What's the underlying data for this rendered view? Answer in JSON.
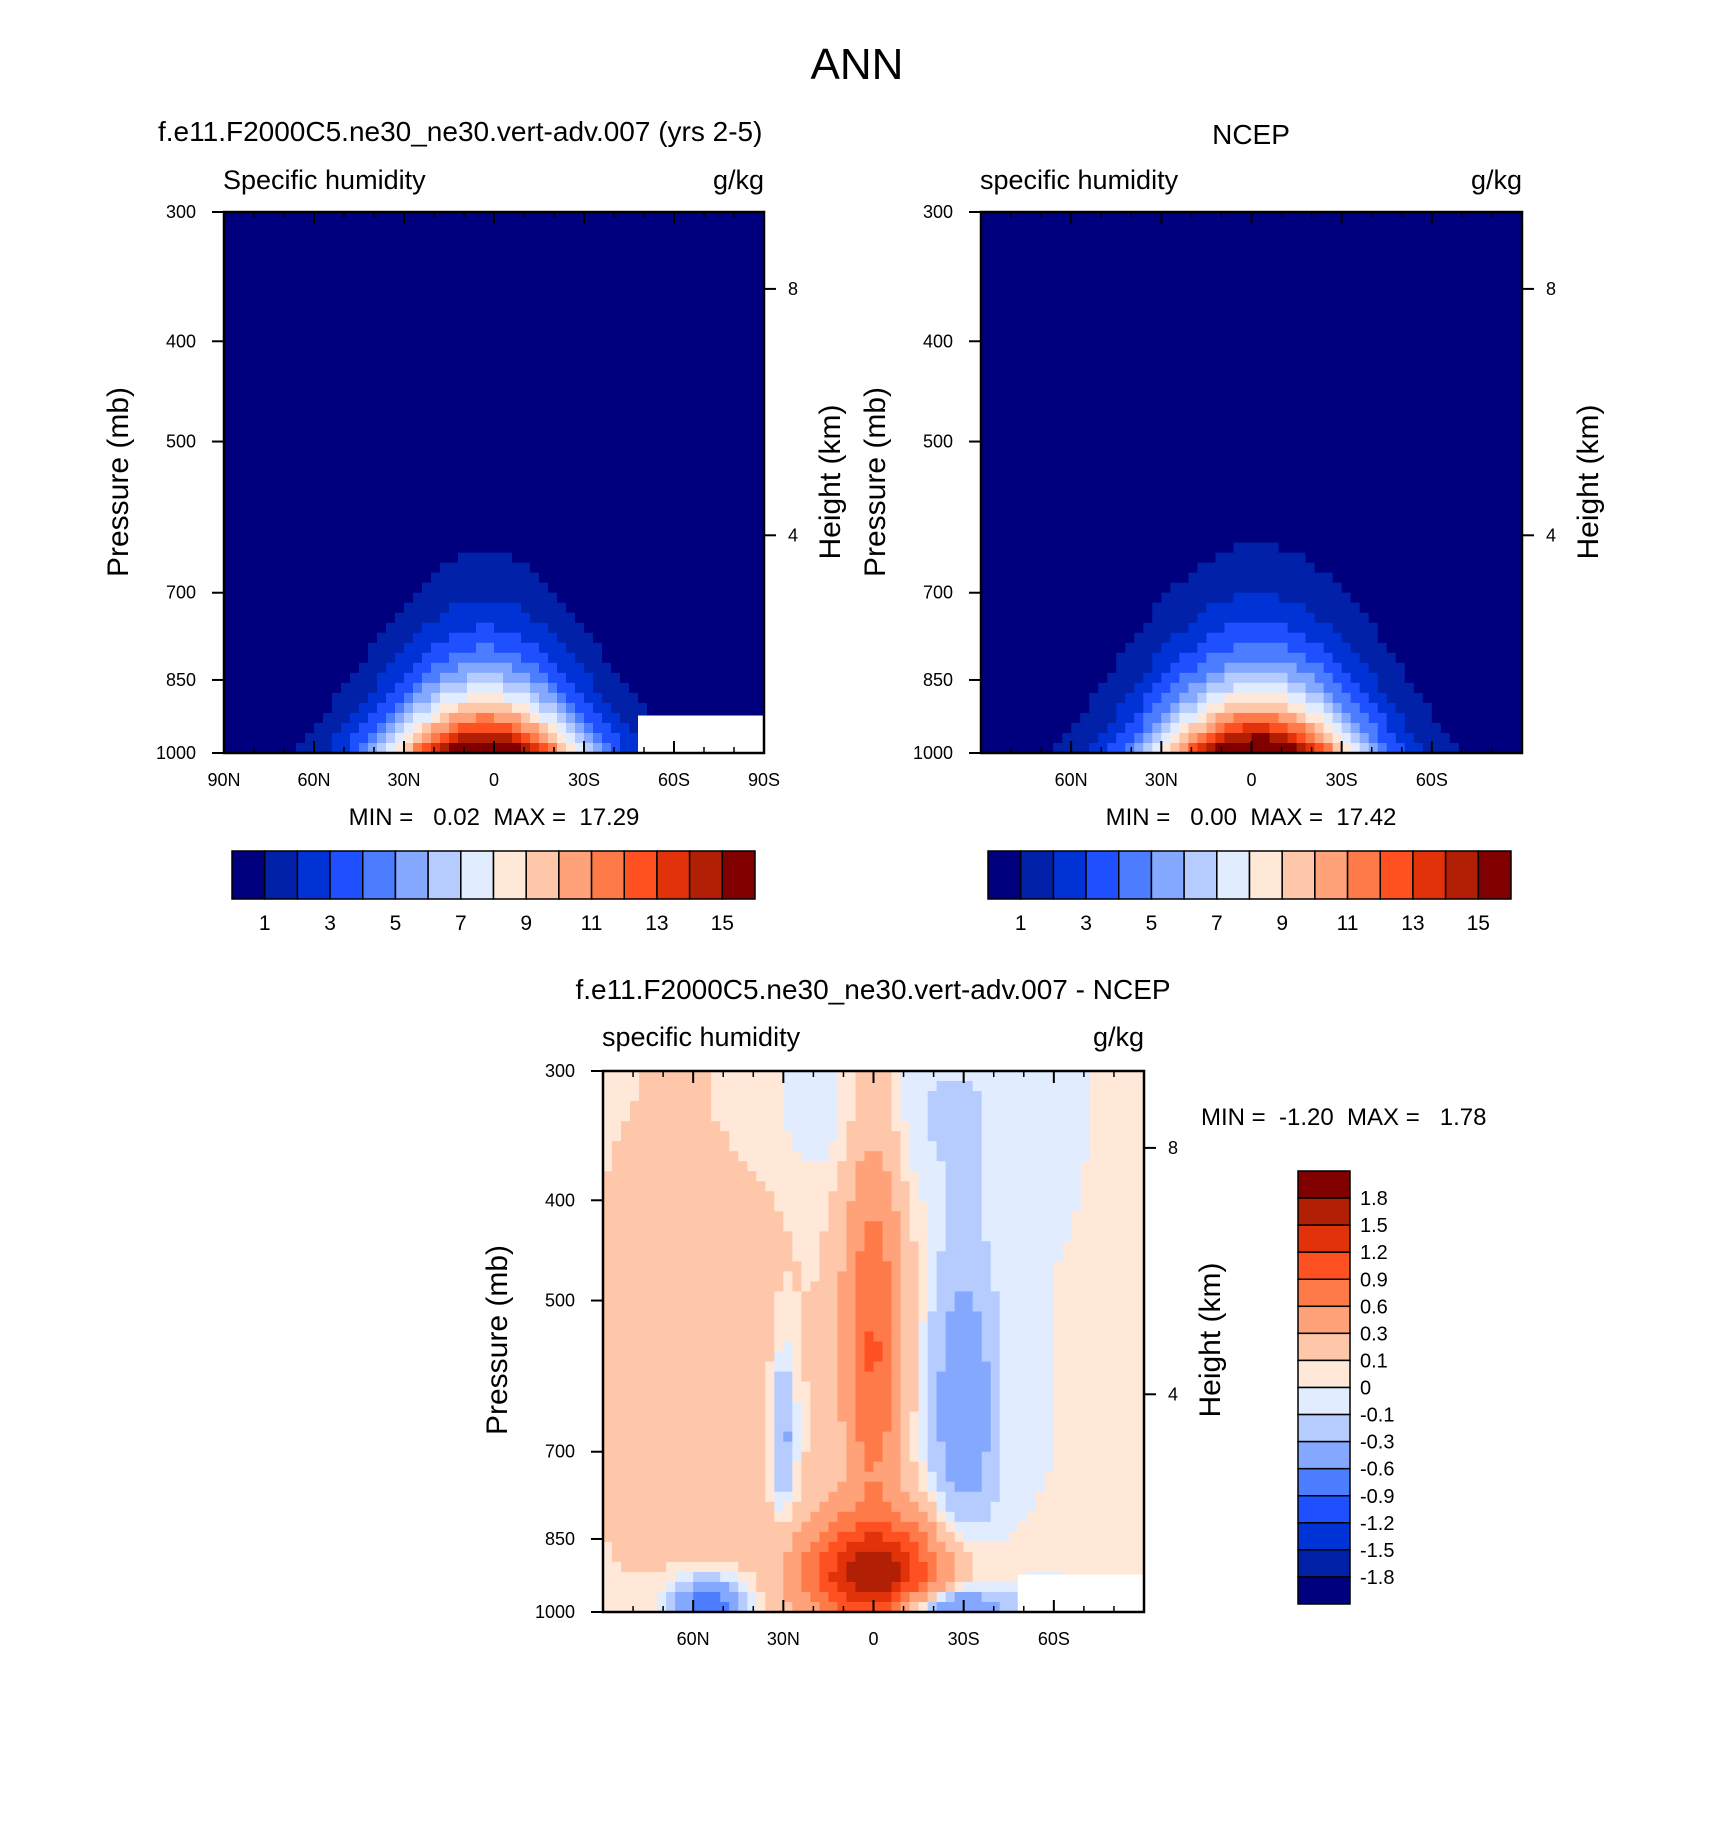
{
  "figure_title": "ANN",
  "chart_data": [
    {
      "type": "contour",
      "title": "f.e11.F2000C5.ne30_ne30.vert-adv.007 (yrs 2-5)",
      "field_label": "Specific humidity",
      "units": "g/kg",
      "xlabel": "",
      "ylabel": "Pressure (mb)",
      "y2label": "Height (km)",
      "x_ticklabels": [
        "90N",
        "60N",
        "30N",
        "0",
        "30S",
        "60S",
        "90S"
      ],
      "y_ticks": [
        300,
        400,
        500,
        700,
        850,
        1000
      ],
      "y2_ticks": [
        8,
        4
      ],
      "y_scale": "log",
      "ylim": [
        1000,
        300
      ],
      "xlim": [
        90,
        -90
      ],
      "stats": "MIN =   0.02  MAX =  17.29",
      "min": 0.02,
      "max": 17.29,
      "levels": [
        0,
        1,
        2,
        3,
        4,
        5,
        6,
        7,
        8,
        9,
        10,
        11,
        12,
        13,
        14,
        15,
        16
      ],
      "colorbar_labels": [
        "1",
        "3",
        "5",
        "7",
        "9",
        "11",
        "13",
        "15"
      ],
      "colors": [
        "#00007f",
        "#0021a8",
        "#0033d6",
        "#1f50ff",
        "#4d7dff",
        "#85a8ff",
        "#b6ccff",
        "#e1ecff",
        "#ffe8d8",
        "#ffc7aa",
        "#ffa27a",
        "#ff7a49",
        "#ff5022",
        "#e1320a",
        "#b11f05",
        "#800000"
      ],
      "missing_region": {
        "lat_from": -48,
        "lat_to": -90,
        "p_from": 920,
        "p_to": 1000
      }
    },
    {
      "type": "contour",
      "title": "NCEP",
      "field_label": "specific humidity",
      "units": "g/kg",
      "xlabel": "",
      "ylabel": "Pressure (mb)",
      "y2label": "Height (km)",
      "x_ticklabels": [
        "60N",
        "30N",
        "0",
        "30S",
        "60S"
      ],
      "y_ticks": [
        300,
        400,
        500,
        700,
        850,
        1000
      ],
      "y2_ticks": [
        8,
        4
      ],
      "y_scale": "log",
      "ylim": [
        1000,
        300
      ],
      "xlim": [
        90,
        -90
      ],
      "stats": "MIN =   0.00  MAX =  17.42",
      "min": 0.0,
      "max": 17.42,
      "levels": [
        0,
        1,
        2,
        3,
        4,
        5,
        6,
        7,
        8,
        9,
        10,
        11,
        12,
        13,
        14,
        15,
        16
      ],
      "colorbar_labels": [
        "1",
        "3",
        "5",
        "7",
        "9",
        "11",
        "13",
        "15"
      ],
      "colors": [
        "#00007f",
        "#0021a8",
        "#0033d6",
        "#1f50ff",
        "#4d7dff",
        "#85a8ff",
        "#b6ccff",
        "#e1ecff",
        "#ffe8d8",
        "#ffc7aa",
        "#ffa27a",
        "#ff7a49",
        "#ff5022",
        "#e1320a",
        "#b11f05",
        "#800000"
      ]
    },
    {
      "type": "contour",
      "title": "f.e11.F2000C5.ne30_ne30.vert-adv.007 - NCEP",
      "field_label": "specific humidity",
      "units": "g/kg",
      "xlabel": "",
      "ylabel": "Pressure (mb)",
      "y2label": "Height (km)",
      "x_ticklabels": [
        "60N",
        "30N",
        "0",
        "30S",
        "60S"
      ],
      "y_ticks": [
        300,
        400,
        500,
        700,
        850,
        1000
      ],
      "y2_ticks": [
        8,
        4
      ],
      "y_scale": "log",
      "ylim": [
        1000,
        300
      ],
      "xlim": [
        90,
        -90
      ],
      "stats": "MIN =  -1.20  MAX =   1.78",
      "min": -1.2,
      "max": 1.78,
      "levels": [
        -1.8,
        -1.5,
        -1.2,
        -0.9,
        -0.6,
        -0.3,
        -0.1,
        0,
        0.1,
        0.3,
        0.6,
        0.9,
        1.2,
        1.5,
        1.8
      ],
      "colorbar_labels": [
        "1.8",
        "1.5",
        "1.2",
        "0.9",
        "0.6",
        "0.3",
        "0.1",
        "0",
        "-0.1",
        "-0.3",
        "-0.6",
        "-0.9",
        "-1.2",
        "-1.5",
        "-1.8"
      ],
      "colors": [
        "#00007f",
        "#0021a8",
        "#0033d6",
        "#1f50ff",
        "#4d7dff",
        "#85a8ff",
        "#b6ccff",
        "#e1ecff",
        "#ffe8d8",
        "#ffc7aa",
        "#ffa27a",
        "#ff7a49",
        "#ff5022",
        "#e1320a",
        "#b11f05",
        "#800000"
      ],
      "missing_region": {
        "lat_from": -48,
        "lat_to": -90,
        "p_from": 920,
        "p_to": 1000
      }
    }
  ]
}
